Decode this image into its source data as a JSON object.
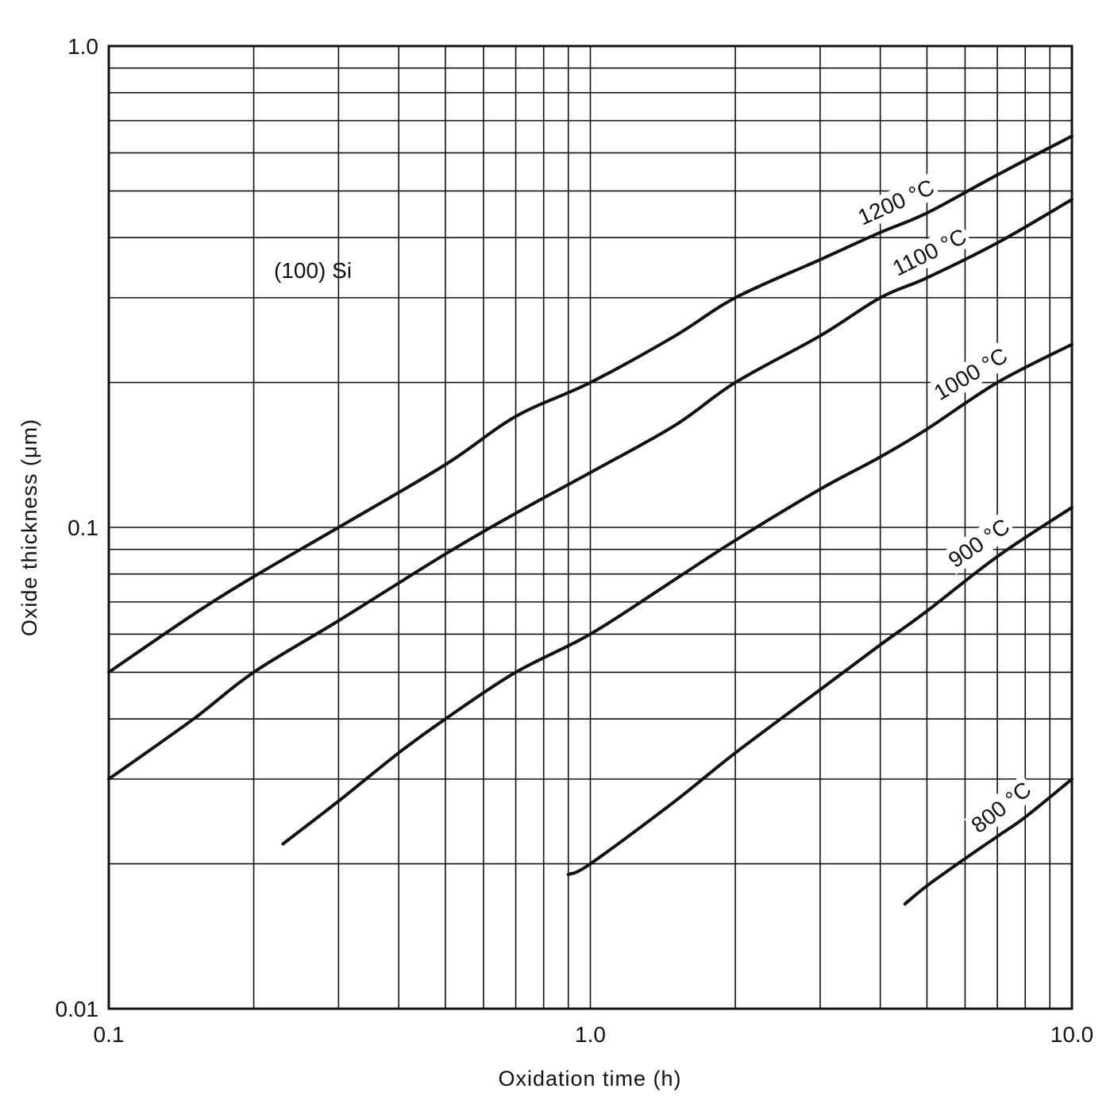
{
  "chart_data": {
    "type": "line",
    "title": "",
    "xlabel": "Oxidation time (h)",
    "ylabel": "Oxide thickness (μm)",
    "x_scale": "log",
    "y_scale": "log",
    "xlim": [
      0.1,
      10.0
    ],
    "ylim": [
      0.01,
      1.0
    ],
    "x_ticks": [
      {
        "value": 0.1,
        "label": "0.1"
      },
      {
        "value": 1.0,
        "label": "1.0"
      },
      {
        "value": 10.0,
        "label": "10.0"
      }
    ],
    "y_ticks": [
      {
        "value": 0.01,
        "label": "0.01"
      },
      {
        "value": 0.1,
        "label": "0.1"
      },
      {
        "value": 1.0,
        "label": "1.0"
      }
    ],
    "grid": true,
    "legend": "none",
    "annotation": "(100) Si",
    "series": [
      {
        "name": "1200 °C",
        "x": [
          0.1,
          0.15,
          0.2,
          0.3,
          0.5,
          0.7,
          1.0,
          1.5,
          2.0,
          3.0,
          4.0,
          5.0,
          7.0,
          10.0
        ],
        "y": [
          0.05,
          0.066,
          0.079,
          0.1,
          0.135,
          0.17,
          0.2,
          0.25,
          0.3,
          0.36,
          0.41,
          0.45,
          0.54,
          0.65
        ]
      },
      {
        "name": "1100 °C",
        "x": [
          0.1,
          0.15,
          0.2,
          0.3,
          0.5,
          0.7,
          1.0,
          1.5,
          2.0,
          3.0,
          4.0,
          5.0,
          7.0,
          10.0
        ],
        "y": [
          0.03,
          0.04,
          0.05,
          0.064,
          0.088,
          0.107,
          0.13,
          0.163,
          0.2,
          0.25,
          0.3,
          0.33,
          0.39,
          0.48
        ]
      },
      {
        "name": "1000 °C",
        "x": [
          0.23,
          0.3,
          0.4,
          0.5,
          0.7,
          1.0,
          1.5,
          2.0,
          3.0,
          4.0,
          5.0,
          7.0,
          10.0
        ],
        "y": [
          0.022,
          0.027,
          0.034,
          0.04,
          0.05,
          0.06,
          0.078,
          0.094,
          0.12,
          0.14,
          0.16,
          0.2,
          0.24
        ]
      },
      {
        "name": "900 °C",
        "x": [
          0.9,
          1.0,
          1.5,
          2.0,
          3.0,
          4.0,
          5.0,
          7.0,
          10.0
        ],
        "y": [
          0.019,
          0.02,
          0.027,
          0.034,
          0.046,
          0.057,
          0.067,
          0.087,
          0.11
        ]
      },
      {
        "name": "800 °C",
        "x": [
          4.5,
          5.0,
          6.0,
          7.0,
          8.0,
          10.0
        ],
        "y": [
          0.0165,
          0.018,
          0.0205,
          0.0228,
          0.025,
          0.03
        ]
      }
    ]
  }
}
